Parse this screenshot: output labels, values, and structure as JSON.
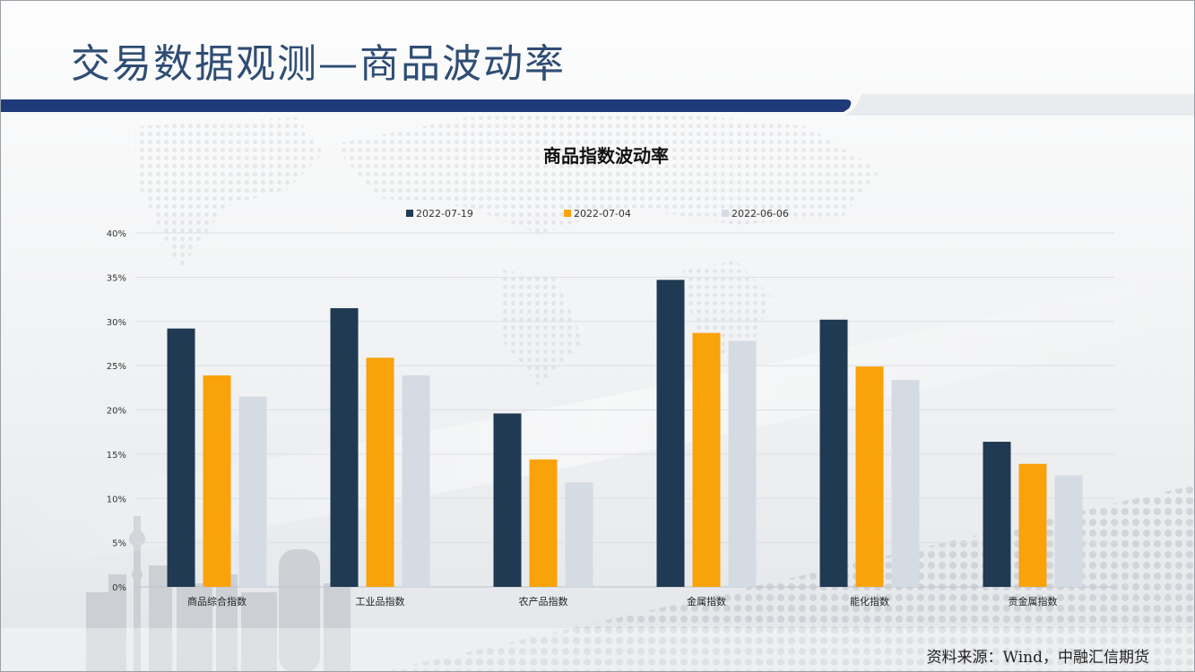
{
  "slide": {
    "title": "交易数据观测—商品波动率",
    "source": "资料来源：Wind，中融汇信期货"
  },
  "colors": {
    "title": "#2f4d74",
    "band": "#1f3a78",
    "series": [
      "#1f3a52",
      "#f9a20a",
      "#d5dbe3"
    ]
  },
  "chart_data": {
    "type": "bar",
    "title": "商品指数波动率",
    "categories": [
      "商品综合指数",
      "工业品指数",
      "农产品指数",
      "金属指数",
      "能化指数",
      "贵金属指数"
    ],
    "series": [
      {
        "name": "2022-07-19",
        "values": [
          29.2,
          31.5,
          19.6,
          34.7,
          30.2,
          16.4
        ]
      },
      {
        "name": "2022-07-04",
        "values": [
          23.9,
          25.9,
          14.4,
          28.7,
          24.9,
          13.9
        ]
      },
      {
        "name": "2022-06-06",
        "values": [
          21.5,
          23.9,
          11.8,
          27.8,
          23.4,
          12.6
        ]
      }
    ],
    "ylim": [
      0,
      40
    ],
    "yticks": [
      0,
      5,
      10,
      15,
      20,
      25,
      30,
      35,
      40
    ],
    "ytick_labels": [
      "0%",
      "5%",
      "10%",
      "15%",
      "20%",
      "25%",
      "30%",
      "35%",
      "40%"
    ],
    "grid": true,
    "legend": "top"
  }
}
